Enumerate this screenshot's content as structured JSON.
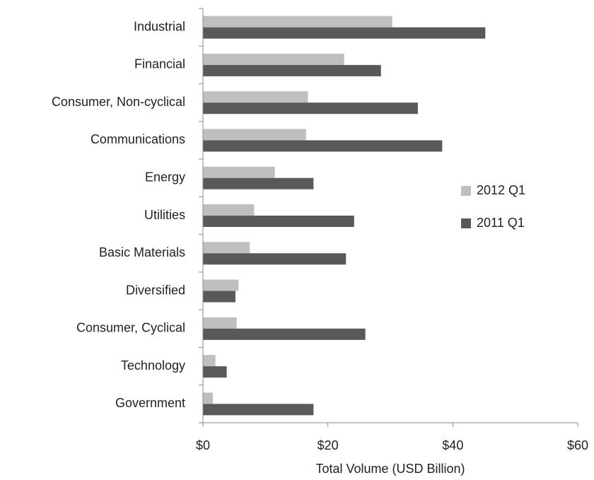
{
  "chart_data": {
    "type": "barh",
    "categories": [
      "Industrial",
      "Financial",
      "Consumer, Non-cyclical",
      "Communications",
      "Energy",
      "Utilities",
      "Basic Materials",
      "Diversified",
      "Consumer, Cyclical",
      "Technology",
      "Government"
    ],
    "series": [
      {
        "name": "2012 Q1",
        "color": "#bfbfbf",
        "values": [
          30.3,
          22.6,
          16.8,
          16.5,
          11.5,
          8.2,
          7.5,
          5.7,
          5.4,
          2.0,
          1.6
        ]
      },
      {
        "name": "2011 Q1",
        "color": "#595959",
        "values": [
          45.2,
          28.5,
          34.4,
          38.3,
          17.7,
          24.2,
          22.9,
          5.2,
          26.0,
          3.8,
          17.7
        ]
      }
    ],
    "xlim": [
      0,
      60
    ],
    "xticks": [
      {
        "value": 0,
        "label": "$0"
      },
      {
        "value": 20,
        "label": "$20"
      },
      {
        "value": 40,
        "label": "$40"
      },
      {
        "value": 60,
        "label": "$60"
      }
    ],
    "xlabel": "Total Volume (USD Billion)",
    "legend": "right"
  }
}
